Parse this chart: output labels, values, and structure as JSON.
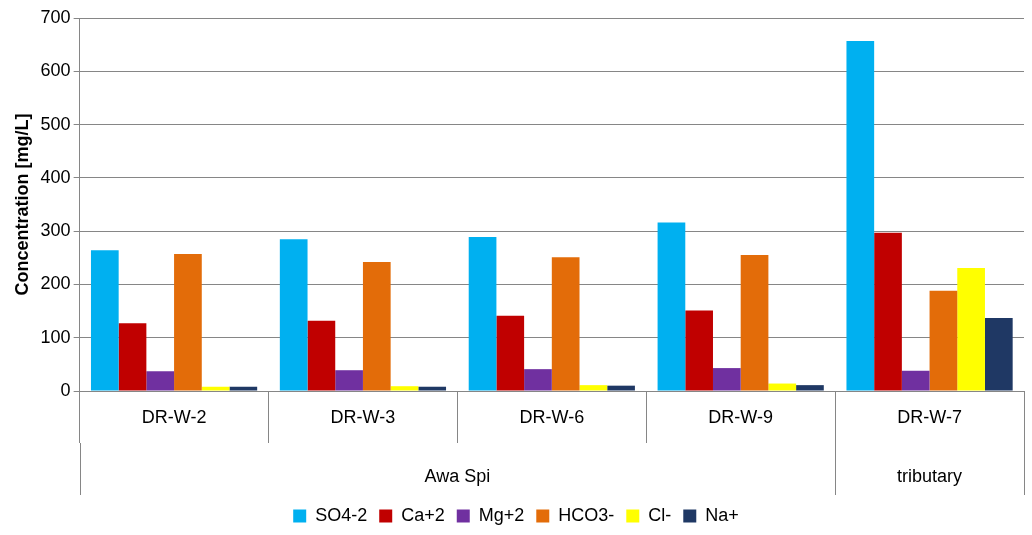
{
  "chart_data": {
    "type": "bar",
    "ylabel": "Concentration [mg/L]",
    "categories": [
      "DR-W-2",
      "DR-W-3",
      "DR-W-6",
      "DR-W-9",
      "DR-W-7"
    ],
    "series": [
      {
        "name": "SO4-2",
        "color": "#00b0f0",
        "values": [
          264,
          285,
          289,
          316,
          657
        ]
      },
      {
        "name": "Ca+2",
        "color": "#c00000",
        "values": [
          127,
          132,
          141,
          151,
          297
        ]
      },
      {
        "name": "Mg+2",
        "color": "#7030a0",
        "values": [
          37,
          39,
          41,
          43,
          38
        ]
      },
      {
        "name": "HCO3-",
        "color": "#e36c09",
        "values": [
          257,
          242,
          251,
          255,
          188
        ]
      },
      {
        "name": "Cl-",
        "color": "#ffff00",
        "values": [
          8,
          9,
          11,
          14,
          231
        ]
      },
      {
        "name": "Na+",
        "color": "#1f3864",
        "values": [
          8,
          8,
          10,
          11,
          137
        ]
      }
    ],
    "ylim": [
      0,
      700
    ],
    "yticks": [
      0,
      100,
      200,
      300,
      400,
      500,
      600,
      700
    ],
    "grid": "y",
    "legend": "bottom",
    "annotations": [
      "Awa Spi",
      "tributary"
    ]
  }
}
